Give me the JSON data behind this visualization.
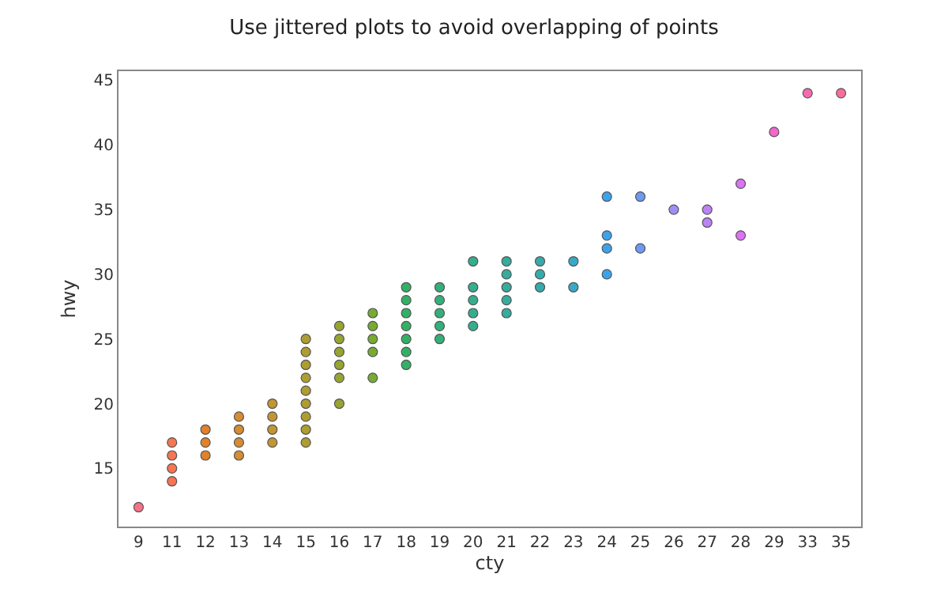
{
  "chart_data": {
    "type": "scatter",
    "title": "Use jittered plots to avoid overlapping of points",
    "xlabel": "cty",
    "ylabel": "hwy",
    "categories": [
      "9",
      "11",
      "12",
      "13",
      "14",
      "15",
      "16",
      "17",
      "18",
      "19",
      "20",
      "21",
      "22",
      "23",
      "24",
      "25",
      "26",
      "27",
      "28",
      "29",
      "33",
      "35"
    ],
    "ylim": [
      10.5,
      45.7
    ],
    "yticks": [
      15,
      20,
      25,
      30,
      35,
      40,
      45
    ],
    "marker": "circle",
    "series": [
      {
        "color": "#f77189",
        "x": [
          "9"
        ],
        "values": [
          12
        ]
      },
      {
        "color": "#f7754f",
        "x": [
          "11",
          "11",
          "11",
          "11"
        ],
        "values": [
          14,
          15,
          16,
          17
        ]
      },
      {
        "color": "#e1812b",
        "x": [
          "12",
          "12",
          "12"
        ],
        "values": [
          16,
          17,
          18
        ]
      },
      {
        "color": "#d58c32",
        "x": [
          "13",
          "13",
          "13",
          "13"
        ],
        "values": [
          16,
          17,
          18,
          19
        ]
      },
      {
        "color": "#c29632",
        "x": [
          "14",
          "14",
          "14",
          "14"
        ],
        "values": [
          17,
          18,
          19,
          20
        ]
      },
      {
        "color": "#ae9d31",
        "x": [
          "15",
          "15",
          "15",
          "15",
          "15",
          "15",
          "15",
          "15",
          "15"
        ],
        "values": [
          17,
          18,
          19,
          20,
          21,
          22,
          23,
          24,
          25
        ]
      },
      {
        "color": "#97a431",
        "x": [
          "16",
          "16",
          "16",
          "16",
          "16",
          "16"
        ],
        "values": [
          20,
          22,
          23,
          24,
          25,
          26
        ]
      },
      {
        "color": "#77ab31",
        "x": [
          "17",
          "17",
          "17",
          "17",
          "17"
        ],
        "values": [
          22,
          24,
          25,
          26,
          27
        ]
      },
      {
        "color": "#32b166",
        "x": [
          "18",
          "18",
          "18",
          "18",
          "18",
          "18",
          "18"
        ],
        "values": [
          23,
          24,
          25,
          26,
          27,
          28,
          29
        ]
      },
      {
        "color": "#33b07a",
        "x": [
          "19",
          "19",
          "19",
          "19",
          "19"
        ],
        "values": [
          25,
          26,
          27,
          28,
          29
        ]
      },
      {
        "color": "#34ae8e",
        "x": [
          "20",
          "20",
          "20",
          "20",
          "20"
        ],
        "values": [
          26,
          27,
          28,
          29,
          31
        ]
      },
      {
        "color": "#35ac9e",
        "x": [
          "21",
          "21",
          "21",
          "21",
          "21"
        ],
        "values": [
          27,
          28,
          29,
          30,
          31
        ]
      },
      {
        "color": "#36abab",
        "x": [
          "22",
          "22",
          "22"
        ],
        "values": [
          29,
          30,
          31
        ]
      },
      {
        "color": "#38a9c5",
        "x": [
          "23",
          "23"
        ],
        "values": [
          29,
          31
        ]
      },
      {
        "color": "#3ba3ec",
        "x": [
          "24",
          "24",
          "24",
          "24"
        ],
        "values": [
          30,
          32,
          33,
          36
        ]
      },
      {
        "color": "#6e9af4",
        "x": [
          "25",
          "25"
        ],
        "values": [
          32,
          36
        ]
      },
      {
        "color": "#9f8ff4",
        "x": [
          "26"
        ],
        "values": [
          35
        ]
      },
      {
        "color": "#bb83f4",
        "x": [
          "27",
          "27"
        ],
        "values": [
          34,
          35
        ]
      },
      {
        "color": "#dc73f4",
        "x": [
          "28",
          "28"
        ],
        "values": [
          33,
          37
        ]
      },
      {
        "color": "#f565cc",
        "x": [
          "29"
        ],
        "values": [
          41
        ]
      },
      {
        "color": "#f66bad",
        "x": [
          "33"
        ],
        "values": [
          44
        ]
      },
      {
        "color": "#f66f9a",
        "x": [
          "35"
        ],
        "values": [
          44
        ]
      }
    ]
  }
}
